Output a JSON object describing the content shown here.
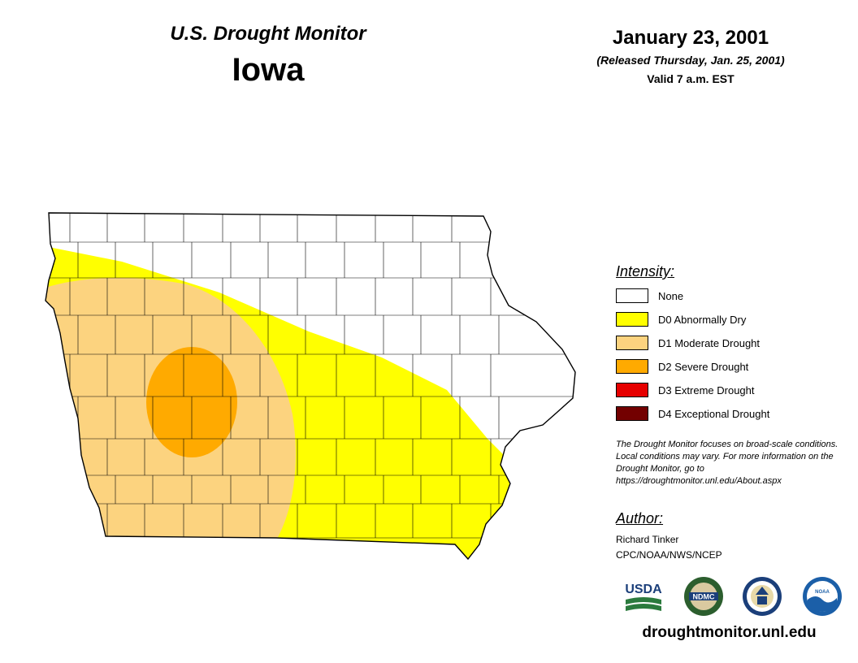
{
  "header": {
    "title": "U.S. Drought Monitor",
    "region": "Iowa",
    "date": "January 23, 2001",
    "released": "(Released Thursday, Jan. 25, 2001)",
    "valid": "Valid 7 a.m. EST"
  },
  "legend": {
    "title": "Intensity:",
    "items": [
      {
        "label": "None",
        "color": "#ffffff"
      },
      {
        "label": "D0 Abnormally Dry",
        "color": "#ffff00"
      },
      {
        "label": "D1 Moderate Drought",
        "color": "#fcd37f"
      },
      {
        "label": "D2 Severe Drought",
        "color": "#ffaa00"
      },
      {
        "label": "D3 Extreme Drought",
        "color": "#e60000"
      },
      {
        "label": "D4 Exceptional Drought",
        "color": "#730000"
      }
    ]
  },
  "note": "The Drought Monitor focuses on broad-scale conditions. Local conditions may vary. For more information on the Drought Monitor, go to https://droughtmonitor.unl.edu/About.aspx",
  "author": {
    "title": "Author:",
    "name": "Richard Tinker",
    "org": "CPC/NOAA/NWS/NCEP"
  },
  "logos": [
    {
      "icon": "usda-logo-icon",
      "text": "USDA"
    },
    {
      "icon": "ndmc-logo-icon",
      "text": "NDMC"
    },
    {
      "icon": "commerce-seal-icon",
      "text": ""
    },
    {
      "icon": "noaa-logo-icon",
      "text": "NOAA"
    }
  ],
  "footer": {
    "url": "droughtmonitor.unl.edu"
  },
  "map": {
    "state": "Iowa",
    "colors": {
      "none": "#ffffff",
      "d0": "#ffff00",
      "d1": "#fcd37f",
      "d2": "#ffaa00",
      "county_lines": "#000000"
    }
  }
}
